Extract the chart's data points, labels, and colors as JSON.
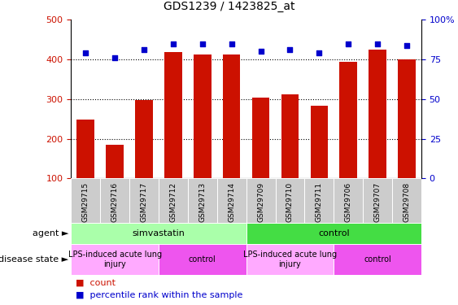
{
  "title": "GDS1239 / 1423825_at",
  "samples": [
    "GSM29715",
    "GSM29716",
    "GSM29717",
    "GSM29712",
    "GSM29713",
    "GSM29714",
    "GSM29709",
    "GSM29710",
    "GSM29711",
    "GSM29706",
    "GSM29707",
    "GSM29708"
  ],
  "counts": [
    248,
    185,
    297,
    418,
    413,
    413,
    303,
    312,
    284,
    395,
    424,
    400
  ],
  "percentiles": [
    79,
    76,
    81,
    85,
    85,
    85,
    80,
    81,
    79,
    85,
    85,
    84
  ],
  "bar_color": "#cc1100",
  "dot_color": "#0000cc",
  "ylim_left": [
    100,
    500
  ],
  "ylim_right": [
    0,
    100
  ],
  "yticks_left": [
    100,
    200,
    300,
    400,
    500
  ],
  "yticks_right": [
    0,
    25,
    50,
    75,
    100
  ],
  "ytick_labels_right": [
    "0",
    "25",
    "50",
    "75",
    "100%"
  ],
  "agent_groups": [
    {
      "label": "simvastatin",
      "start": 0,
      "end": 6,
      "color": "#aaffaa"
    },
    {
      "label": "control",
      "start": 6,
      "end": 12,
      "color": "#44dd44"
    }
  ],
  "disease_groups": [
    {
      "label": "LPS-induced acute lung\ninjury",
      "start": 0,
      "end": 3,
      "color": "#ffaaff"
    },
    {
      "label": "control",
      "start": 3,
      "end": 6,
      "color": "#ee55ee"
    },
    {
      "label": "LPS-induced acute lung\ninjury",
      "start": 6,
      "end": 9,
      "color": "#ffaaff"
    },
    {
      "label": "control",
      "start": 9,
      "end": 12,
      "color": "#ee55ee"
    }
  ],
  "legend_count_label": "count",
  "legend_pct_label": "percentile rank within the sample",
  "agent_label": "agent",
  "disease_state_label": "disease state"
}
